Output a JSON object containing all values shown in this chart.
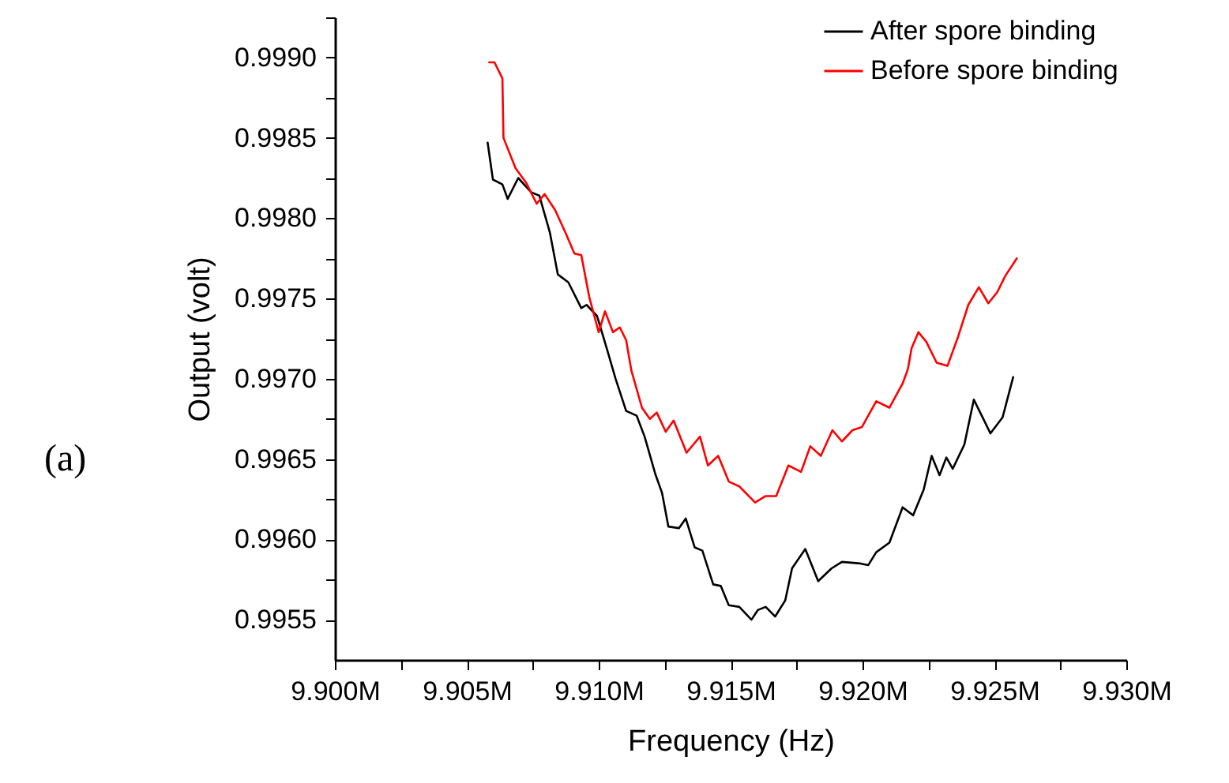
{
  "chart_data": {
    "type": "line",
    "xlabel": "Frequency (Hz)",
    "ylabel": "Output (volt)",
    "annotations": [
      "(a)"
    ],
    "xlim": [
      9900000,
      9930000
    ],
    "xticks": [
      {
        "value": 9900000,
        "label": "9.900M"
      },
      {
        "value": 9902500,
        "label": null
      },
      {
        "value": 9905000,
        "label": "9.905M"
      },
      {
        "value": 9907500,
        "label": null
      },
      {
        "value": 9910000,
        "label": "9.910M"
      },
      {
        "value": 9912500,
        "label": null
      },
      {
        "value": 9915000,
        "label": "9.915M"
      },
      {
        "value": 9917500,
        "label": null
      },
      {
        "value": 9920000,
        "label": "9.920M"
      },
      {
        "value": 9922500,
        "label": null
      },
      {
        "value": 9925000,
        "label": "9.925M"
      },
      {
        "value": 9927500,
        "label": null
      },
      {
        "value": 9930000,
        "label": "9.930M"
      }
    ],
    "ylim": [
      0.99525,
      0.99925
    ],
    "yticks": [
      0.9955,
      {
        "value": 0.99575,
        "label": null
      },
      {
        "value": 0.996,
        "label": "0.9960"
      },
      {
        "value": 0.99625,
        "label": null
      },
      0.9965,
      {
        "value": 0.99675,
        "label": null
      },
      {
        "value": 0.997,
        "label": "0.9970"
      },
      {
        "value": 0.99725,
        "label": null
      },
      0.9975,
      {
        "value": 0.99775,
        "label": null
      },
      {
        "value": 0.998,
        "label": "0.9980"
      },
      {
        "value": 0.99825,
        "label": null
      },
      0.9985,
      {
        "value": 0.99875,
        "label": null
      },
      {
        "value": 0.999,
        "label": "0.9990"
      },
      {
        "value": 0.99925,
        "label": null
      }
    ],
    "grid": false,
    "legend": "top right",
    "line_style": "solid",
    "series": [
      {
        "name": "After spore binding",
        "color": "#000000",
        "x": [
          9905790,
          9905990,
          9906350,
          9906550,
          9906950,
          9907450,
          9907750,
          9908150,
          9908450,
          9908850,
          9909340,
          9909540,
          9909940,
          9910340,
          9910640,
          9911040,
          9911440,
          9911740,
          9912140,
          9912400,
          9912640,
          9913040,
          9913300,
          9913640,
          9913930,
          9914340,
          9914630,
          9914930,
          9915330,
          9915790,
          9916030,
          9916330,
          9916690,
          9917070,
          9917330,
          9917830,
          9918320,
          9918830,
          9919220,
          9919920,
          9920220,
          9920520,
          9921020,
          9921520,
          9921920,
          9922320,
          9922620,
          9922920,
          9923180,
          9923420,
          9923860,
          9924220,
          9924520,
          9924850,
          9925310,
          9925710
        ],
        "values": [
          0.99847,
          0.99824,
          0.99821,
          0.99812,
          0.99825,
          0.99816,
          0.99814,
          0.99791,
          0.99765,
          0.9976,
          0.99744,
          0.99746,
          0.99739,
          0.99717,
          0.997,
          0.9968,
          0.99677,
          0.99664,
          0.99641,
          0.99629,
          0.99608,
          0.99607,
          0.99613,
          0.99595,
          0.99593,
          0.99572,
          0.99571,
          0.99559,
          0.99558,
          0.9955,
          0.99556,
          0.99558,
          0.99552,
          0.99562,
          0.99582,
          0.99594,
          0.99574,
          0.99582,
          0.99586,
          0.99585,
          0.99584,
          0.99592,
          0.99598,
          0.9962,
          0.99615,
          0.99631,
          0.99652,
          0.9964,
          0.99651,
          0.99644,
          0.99659,
          0.99687,
          0.99677,
          0.99666,
          0.99676,
          0.99701
        ]
      },
      {
        "name": "Before spore binding",
        "color": "#ff0000",
        "x": [
          9905850,
          9906050,
          9906350,
          9906390,
          9906850,
          9907250,
          9907650,
          9907950,
          9908350,
          9908740,
          9909080,
          9909340,
          9909640,
          9910000,
          9910240,
          9910540,
          9910800,
          9911040,
          9911240,
          9911640,
          9911940,
          9912200,
          9912540,
          9912840,
          9913330,
          9913840,
          9914140,
          9914530,
          9914930,
          9915330,
          9915930,
          9916330,
          9916730,
          9917190,
          9917670,
          9918020,
          9918420,
          9918860,
          9919220,
          9919620,
          9919980,
          9920520,
          9921020,
          9921520,
          9921720,
          9921860,
          9922120,
          9922420,
          9922810,
          9923220,
          9923620,
          9924010,
          9924410,
          9924770,
          9925110,
          9925410,
          9925850
        ],
        "values": [
          0.99897,
          0.99897,
          0.99887,
          0.9985,
          0.99831,
          0.99822,
          0.99809,
          0.99815,
          0.99805,
          0.99791,
          0.99778,
          0.99777,
          0.99751,
          0.99729,
          0.99742,
          0.99729,
          0.99732,
          0.99724,
          0.99705,
          0.99682,
          0.99675,
          0.99679,
          0.99667,
          0.99674,
          0.99654,
          0.99664,
          0.99646,
          0.99652,
          0.99636,
          0.99633,
          0.99623,
          0.99627,
          0.99627,
          0.99646,
          0.99642,
          0.99658,
          0.99652,
          0.99668,
          0.99661,
          0.99668,
          0.9967,
          0.99686,
          0.99682,
          0.99697,
          0.99706,
          0.99719,
          0.99729,
          0.99723,
          0.9971,
          0.99708,
          0.99726,
          0.99746,
          0.99757,
          0.99747,
          0.99754,
          0.99764,
          0.99775
        ]
      }
    ]
  }
}
